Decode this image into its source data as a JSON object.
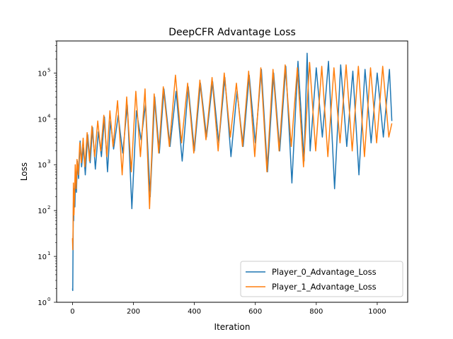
{
  "chart_data": {
    "type": "line",
    "title": "DeepCFR Advantage Loss",
    "xlabel": "Iteration",
    "ylabel": "Loss",
    "xlim": [
      -52,
      1100
    ],
    "ylim": [
      1,
      500000
    ],
    "yscale": "log",
    "x_ticks": [
      0,
      200,
      400,
      600,
      800,
      1000
    ],
    "x_tick_labels": [
      "0",
      "200",
      "400",
      "600",
      "800",
      "1000"
    ],
    "y_ticks": [
      1,
      10,
      100,
      1000,
      10000,
      100000
    ],
    "y_tick_labels": [
      "10",
      "10",
      "10",
      "10",
      "10",
      "10"
    ],
    "y_tick_exponents": [
      "0",
      "1",
      "2",
      "3",
      "4",
      "5"
    ],
    "grid": false,
    "legend_position": "lower-right",
    "series": [
      {
        "name": "Player_0_Advantage_Loss",
        "color": "#1f77b4",
        "x": [
          0,
          1,
          2,
          3,
          4,
          6,
          8,
          10,
          13,
          16,
          20,
          25,
          30,
          36,
          42,
          50,
          58,
          66,
          75,
          85,
          95,
          105,
          115,
          125,
          135,
          150,
          165,
          180,
          195,
          210,
          225,
          240,
          255,
          270,
          285,
          300,
          320,
          340,
          360,
          380,
          400,
          420,
          440,
          460,
          480,
          500,
          520,
          540,
          560,
          580,
          600,
          620,
          640,
          660,
          680,
          700,
          720,
          740,
          760,
          770,
          780,
          800,
          820,
          840,
          860,
          880,
          900,
          920,
          940,
          960,
          980,
          1000,
          1020,
          1040,
          1048
        ],
        "y": [
          2,
          1.8,
          30,
          150,
          60,
          300,
          120,
          700,
          250,
          1200,
          500,
          3300,
          900,
          2400,
          600,
          4500,
          1100,
          6500,
          800,
          5200,
          1500,
          11000,
          700,
          9000,
          2200,
          12000,
          1800,
          20000,
          110,
          15000,
          3500,
          21000,
          200,
          30000,
          1800,
          45000,
          2500,
          40000,
          1200,
          50000,
          2000,
          60000,
          4000,
          65000,
          3000,
          80000,
          1500,
          40000,
          2500,
          90000,
          3000,
          120000,
          700,
          100000,
          2000,
          140000,
          400,
          180000,
          1200,
          270000,
          2000,
          130000,
          4000,
          180000,
          300,
          150000,
          2500,
          110000,
          600,
          120000,
          3000,
          100000,
          4000,
          120000,
          9000
        ]
      },
      {
        "name": "Player_1_Advantage_Loss",
        "color": "#ff7f0e",
        "x": [
          0,
          1,
          2,
          3,
          5,
          7,
          9,
          12,
          15,
          19,
          24,
          29,
          35,
          41,
          48,
          56,
          64,
          73,
          83,
          93,
          103,
          113,
          123,
          133,
          148,
          163,
          178,
          193,
          208,
          223,
          238,
          253,
          268,
          283,
          298,
          318,
          338,
          358,
          378,
          398,
          418,
          438,
          458,
          478,
          498,
          518,
          538,
          558,
          578,
          598,
          618,
          638,
          658,
          678,
          698,
          718,
          738,
          758,
          778,
          798,
          818,
          838,
          858,
          878,
          898,
          918,
          938,
          958,
          978,
          998,
          1018,
          1038,
          1048
        ],
        "y": [
          25,
          14,
          45,
          400,
          80,
          250,
          1000,
          300,
          1300,
          600,
          3000,
          1100,
          3800,
          900,
          5000,
          1200,
          7000,
          1500,
          9000,
          2000,
          12000,
          1500,
          15000,
          2500,
          25000,
          600,
          30000,
          700,
          40000,
          1500,
          45000,
          110,
          35000,
          1800,
          50000,
          2500,
          90000,
          3000,
          60000,
          1800,
          70000,
          3500,
          80000,
          2000,
          100000,
          4000,
          60000,
          2500,
          110000,
          1500,
          130000,
          700,
          120000,
          2000,
          150000,
          2500,
          130000,
          900,
          170000,
          2000,
          140000,
          1500,
          130000,
          3000,
          150000,
          2000,
          140000,
          1500,
          130000,
          3000,
          140000,
          4000,
          8000
        ]
      }
    ]
  }
}
